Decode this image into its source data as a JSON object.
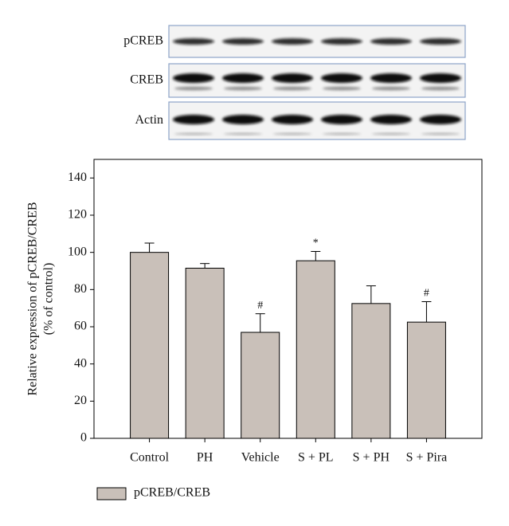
{
  "blots": {
    "labels": [
      "pCREB",
      "CREB",
      "Actin"
    ]
  },
  "chart_data": {
    "type": "bar",
    "y_label": [
      "Relative expression of pCREB/CREB",
      "(% of control)"
    ],
    "categories": [
      "Control",
      "PH",
      "Vehicle",
      "S + PL",
      "S + PH",
      "S + Pira"
    ],
    "series": [
      {
        "name": "pCREB/CREB",
        "color": "#c9c0b9",
        "values": [
          100,
          91.5,
          57,
          95.5,
          72.5,
          62.5
        ],
        "errors": [
          5,
          2.5,
          10,
          5,
          9.5,
          11
        ],
        "annotations": [
          null,
          null,
          "#",
          "*",
          null,
          "#"
        ]
      }
    ],
    "ylim": [
      0,
      150
    ],
    "yticks": [
      0,
      20,
      40,
      60,
      80,
      100,
      120,
      140
    ]
  }
}
